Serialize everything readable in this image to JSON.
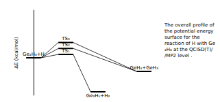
{
  "chart_data": {
    "type": "energy_profile",
    "y_label": "ΔE (kcal/mol)",
    "annotation": "The overall profile of the potential energy surface for the reaction of H with Ge₂H₆ at the QCISD(T)//MP2 level .",
    "color": "#000000",
    "ylim": [
      -22,
      28
    ],
    "tick_labels": false,
    "grid": false,
    "levels": [
      {
        "label": "Ge₂H₆+H",
        "value": 0
      },
      {
        "label": "TS₃",
        "value": 9
      },
      {
        "label": "TS₂",
        "value": 5.5
      },
      {
        "label": "TS₁",
        "value": 2
      },
      {
        "label": "Ge₂H₅+H₂",
        "value": -20
      },
      {
        "label": "GeH₄+GeH₃",
        "value": -8
      }
    ],
    "paths": [
      [
        "Ge₂H₆+H",
        "TS₁",
        "Ge₂H₅+H₂"
      ],
      [
        "Ge₂H₆+H",
        "TS₂",
        "GeH₄+GeH₃"
      ],
      [
        "Ge₂H₆+H",
        "TS₃",
        "GeH₄+GeH₃"
      ]
    ]
  }
}
